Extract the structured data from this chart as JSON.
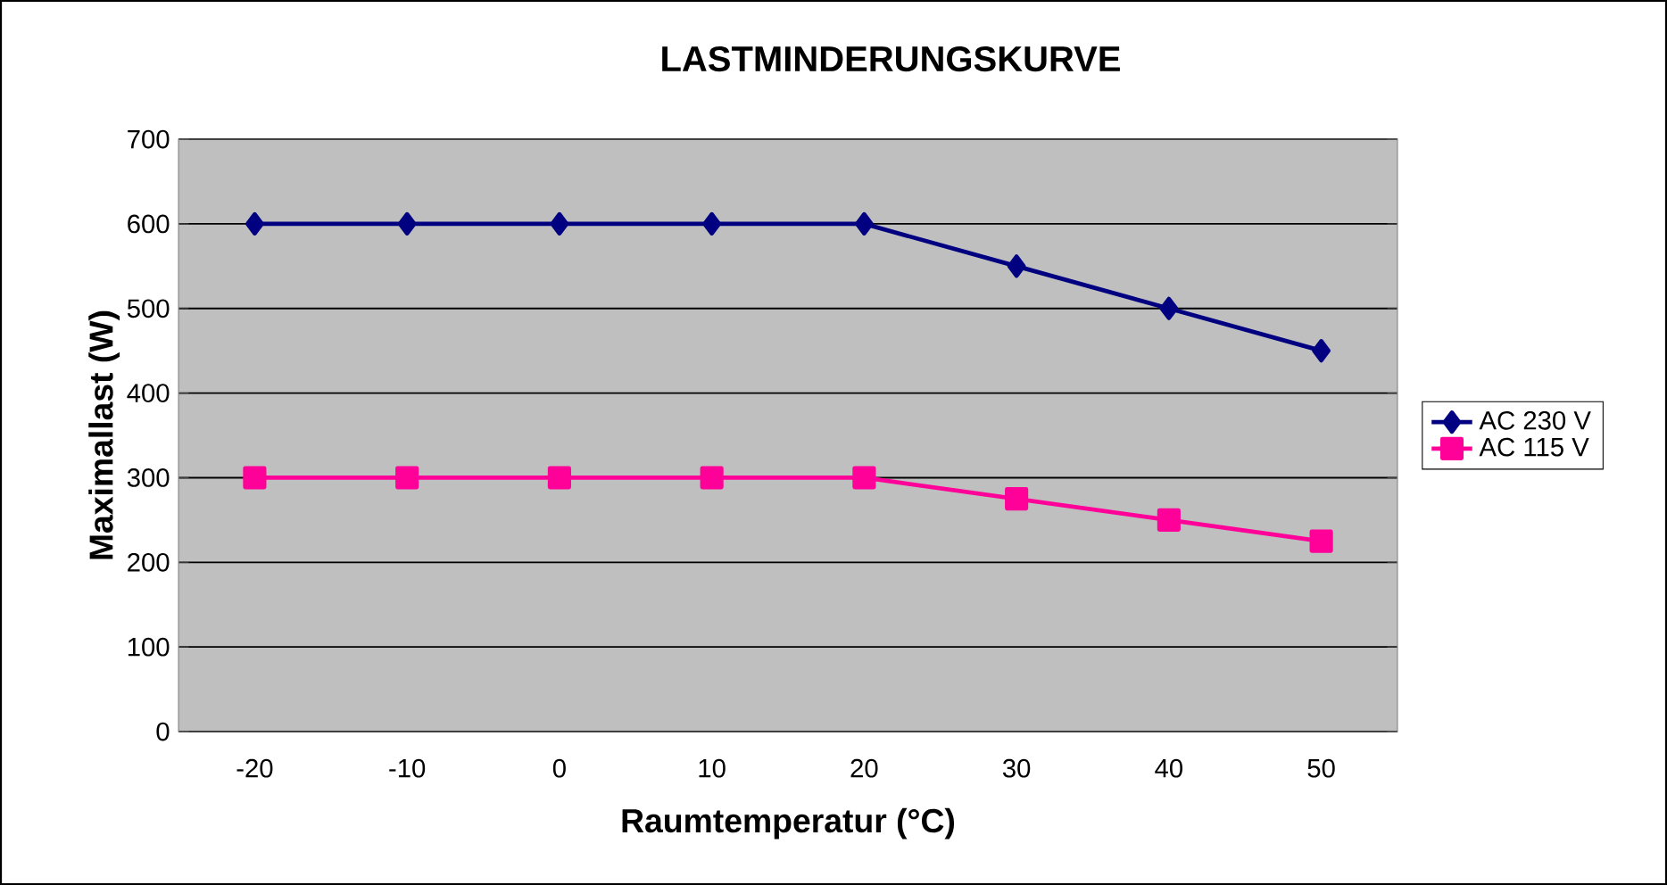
{
  "chart_data": {
    "type": "line",
    "title": "LASTMINDERUNGSKURVE",
    "xlabel": "Raumtemperatur (°C)",
    "ylabel": "Maximallast (W)",
    "categories": [
      "-20",
      "-10",
      "0",
      "10",
      "20",
      "30",
      "40",
      "50"
    ],
    "series": [
      {
        "name": "AC 230 V",
        "color": "#000080",
        "marker": "diamond",
        "values": [
          600,
          600,
          600,
          600,
          600,
          550,
          500,
          450
        ]
      },
      {
        "name": "AC 115 V",
        "color": "#ff0099",
        "marker": "square",
        "values": [
          300,
          300,
          300,
          300,
          300,
          275,
          250,
          225
        ]
      }
    ],
    "ylim": [
      0,
      700
    ],
    "yticks": [
      0,
      100,
      200,
      300,
      400,
      500,
      600,
      700
    ],
    "grid": "y",
    "legend": "right",
    "line_style": "solid"
  }
}
